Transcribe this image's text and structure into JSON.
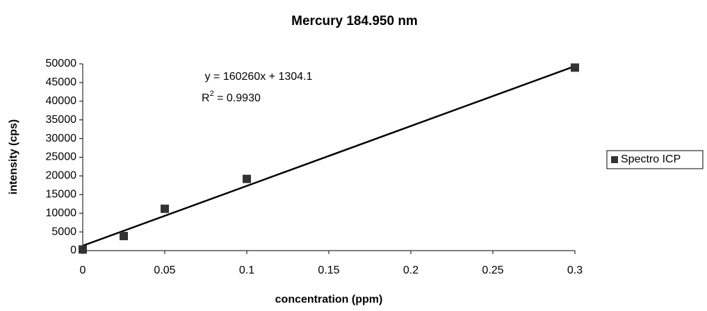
{
  "chart_data": {
    "type": "scatter",
    "title": "Mercury 184.950 nm",
    "x_label": "concentration (ppm)",
    "y_label": "intensity (cps)",
    "x": [
      0,
      0.025,
      0.05,
      0.1,
      0.3
    ],
    "series": [
      {
        "name": "Spectro ICP",
        "color": "#333333",
        "values": [
          300,
          3900,
          11200,
          19200,
          49000
        ]
      }
    ],
    "xlim": [
      0,
      0.3
    ],
    "xticks": [
      0,
      0.05,
      0.1,
      0.15,
      0.2,
      0.25,
      0.3
    ],
    "ylim": [
      0,
      50000
    ],
    "yticks": [
      0,
      5000,
      10000,
      15000,
      20000,
      25000,
      30000,
      35000,
      40000,
      45000,
      50000
    ],
    "trendline": {
      "slope": 160260,
      "intercept": 1304.1,
      "color": "#000000"
    },
    "equation": "y = 160260x + 1304.1",
    "r_squared": {
      "base": "R",
      "exponent": "2",
      "rest": " = 0.9930"
    },
    "grid": false,
    "legend": "right"
  }
}
